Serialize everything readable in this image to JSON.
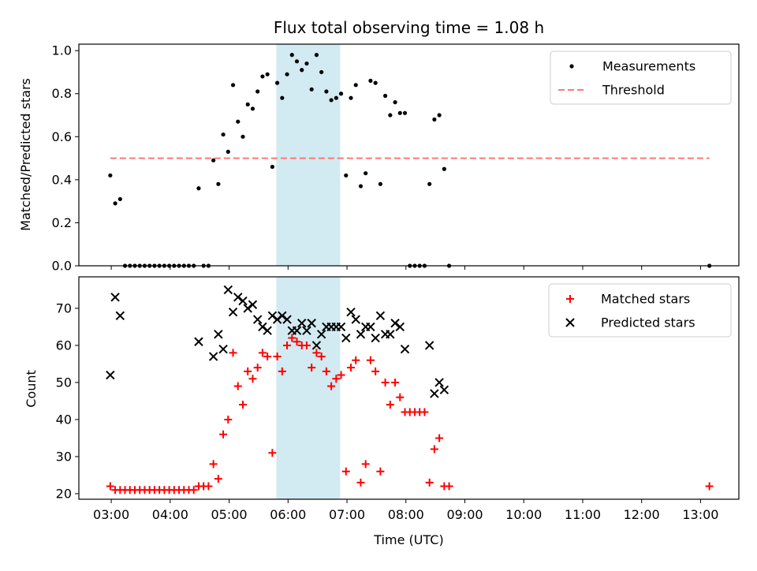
{
  "chart_data": [
    {
      "type": "scatter",
      "title": "Flux total observing time = 1.08 h",
      "ylabel": "Matched/Predicted stars",
      "xlabel": "",
      "xlim_hours": [
        2.45,
        13.65
      ],
      "ylim": [
        0.0,
        1.03
      ],
      "yticks": [
        "0.0",
        "0.2",
        "0.4",
        "0.6",
        "0.8",
        "1.0"
      ],
      "ytick_values": [
        0,
        0.2,
        0.4,
        0.6,
        0.8,
        1.0
      ],
      "shaded_interval": [
        "05:48",
        "06:53"
      ],
      "shade_color": "#add8e6",
      "legend_position": "top-right",
      "series": [
        {
          "name": "Measurements",
          "marker": "dot",
          "color": "#000000",
          "x": [
            "02:59",
            "03:04",
            "03:09",
            "03:14",
            "03:19",
            "03:24",
            "03:29",
            "03:34",
            "03:39",
            "03:44",
            "03:49",
            "03:54",
            "03:59",
            "04:04",
            "04:09",
            "04:14",
            "04:19",
            "04:24",
            "04:29",
            "04:34",
            "04:39",
            "04:44",
            "04:49",
            "04:54",
            "04:59",
            "05:04",
            "05:09",
            "05:14",
            "05:19",
            "05:24",
            "05:29",
            "05:34",
            "05:39",
            "05:44",
            "05:49",
            "05:54",
            "05:59",
            "06:04",
            "06:09",
            "06:14",
            "06:19",
            "06:24",
            "06:29",
            "06:34",
            "06:39",
            "06:44",
            "06:49",
            "06:54",
            "06:59",
            "07:04",
            "07:09",
            "07:14",
            "07:19",
            "07:24",
            "07:29",
            "07:34",
            "07:39",
            "07:44",
            "07:49",
            "07:54",
            "07:59",
            "08:04",
            "08:09",
            "08:14",
            "08:19",
            "08:24",
            "08:29",
            "08:34",
            "08:39",
            "08:44",
            "13:09"
          ],
          "y": [
            0.42,
            0.29,
            0.31,
            0.0,
            0.0,
            0.0,
            0.0,
            0.0,
            0.0,
            0.0,
            0.0,
            0.0,
            0.0,
            0.0,
            0.0,
            0.0,
            0.0,
            0.0,
            0.36,
            0.0,
            0.0,
            0.49,
            0.38,
            0.61,
            0.53,
            0.84,
            0.67,
            0.6,
            0.75,
            0.73,
            0.81,
            0.88,
            0.89,
            0.46,
            0.85,
            0.78,
            0.89,
            0.98,
            0.95,
            0.91,
            0.94,
            0.82,
            0.98,
            0.9,
            0.81,
            0.77,
            0.78,
            0.8,
            0.42,
            0.78,
            0.84,
            0.37,
            0.43,
            0.86,
            0.85,
            0.38,
            0.79,
            0.7,
            0.76,
            0.71,
            0.71,
            0.0,
            0.0,
            0.0,
            0.0,
            0.38,
            0.68,
            0.7,
            0.45,
            0.0,
            0.0
          ]
        },
        {
          "name": "Threshold",
          "style": "dashed",
          "color": "#ff7777",
          "x": [
            "02:59",
            "13:09"
          ],
          "y": [
            0.5,
            0.5
          ]
        }
      ]
    },
    {
      "type": "scatter",
      "title": "",
      "ylabel": "Count",
      "xlabel": "Time (UTC)",
      "xlim_hours": [
        2.45,
        13.65
      ],
      "ylim": [
        18.5,
        78.5
      ],
      "yticks": [
        "20",
        "30",
        "40",
        "50",
        "60",
        "70"
      ],
      "ytick_values": [
        20,
        30,
        40,
        50,
        60,
        70
      ],
      "xticks": [
        "03:00",
        "04:00",
        "05:00",
        "06:00",
        "07:00",
        "08:00",
        "09:00",
        "10:00",
        "11:00",
        "12:00",
        "13:00"
      ],
      "xtick_values": [
        3,
        4,
        5,
        6,
        7,
        8,
        9,
        10,
        11,
        12,
        13
      ],
      "shaded_interval": [
        "05:48",
        "06:53"
      ],
      "shade_color": "#add8e6",
      "legend_position": "top-right",
      "series": [
        {
          "name": "Matched stars",
          "marker": "plus",
          "color": "#ff0000",
          "x": [
            "02:59",
            "03:04",
            "03:09",
            "03:14",
            "03:19",
            "03:24",
            "03:29",
            "03:34",
            "03:39",
            "03:44",
            "03:49",
            "03:54",
            "03:59",
            "04:04",
            "04:09",
            "04:14",
            "04:19",
            "04:24",
            "04:29",
            "04:34",
            "04:39",
            "04:44",
            "04:49",
            "04:54",
            "04:59",
            "05:04",
            "05:09",
            "05:14",
            "05:19",
            "05:24",
            "05:29",
            "05:34",
            "05:39",
            "05:44",
            "05:49",
            "05:54",
            "05:59",
            "06:04",
            "06:09",
            "06:14",
            "06:19",
            "06:24",
            "06:29",
            "06:34",
            "06:39",
            "06:44",
            "06:49",
            "06:54",
            "06:59",
            "07:04",
            "07:09",
            "07:14",
            "07:19",
            "07:24",
            "07:29",
            "07:34",
            "07:39",
            "07:44",
            "07:49",
            "07:54",
            "07:59",
            "08:04",
            "08:09",
            "08:14",
            "08:19",
            "08:24",
            "08:29",
            "08:34",
            "08:39",
            "08:44",
            "13:09"
          ],
          "y": [
            22,
            21,
            21,
            21,
            21,
            21,
            21,
            21,
            21,
            21,
            21,
            21,
            21,
            21,
            21,
            21,
            21,
            21,
            22,
            22,
            22,
            28,
            24,
            36,
            40,
            58,
            49,
            44,
            53,
            51,
            54,
            58,
            57,
            31,
            57,
            53,
            60,
            62,
            61,
            60,
            60,
            54,
            58,
            57,
            53,
            49,
            51,
            52,
            26,
            54,
            56,
            23,
            28,
            56,
            53,
            26,
            50,
            44,
            50,
            46,
            42,
            42,
            42,
            42,
            42,
            23,
            32,
            35,
            22,
            22,
            22
          ]
        },
        {
          "name": "Predicted stars",
          "marker": "x",
          "color": "#000000",
          "x": [
            "02:59",
            "03:04",
            "03:09",
            "04:29",
            "04:44",
            "04:49",
            "04:54",
            "04:59",
            "05:04",
            "05:09",
            "05:14",
            "05:19",
            "05:24",
            "05:29",
            "05:34",
            "05:39",
            "05:44",
            "05:49",
            "05:54",
            "05:59",
            "06:04",
            "06:09",
            "06:14",
            "06:19",
            "06:24",
            "06:29",
            "06:34",
            "06:39",
            "06:44",
            "06:49",
            "06:54",
            "06:59",
            "07:04",
            "07:09",
            "07:14",
            "07:19",
            "07:24",
            "07:29",
            "07:34",
            "07:39",
            "07:44",
            "07:49",
            "07:54",
            "07:59",
            "08:24",
            "08:29",
            "08:34",
            "08:39"
          ],
          "y": [
            52,
            73,
            68,
            61,
            57,
            63,
            59,
            75,
            69,
            73,
            72,
            70,
            71,
            67,
            65,
            64,
            68,
            67,
            68,
            67,
            64,
            64,
            66,
            64,
            66,
            60,
            63,
            65,
            65,
            65,
            65,
            62,
            69,
            67,
            63,
            65,
            65,
            62,
            68,
            63,
            63,
            66,
            65,
            59,
            60,
            47,
            50,
            48
          ]
        }
      ]
    }
  ]
}
